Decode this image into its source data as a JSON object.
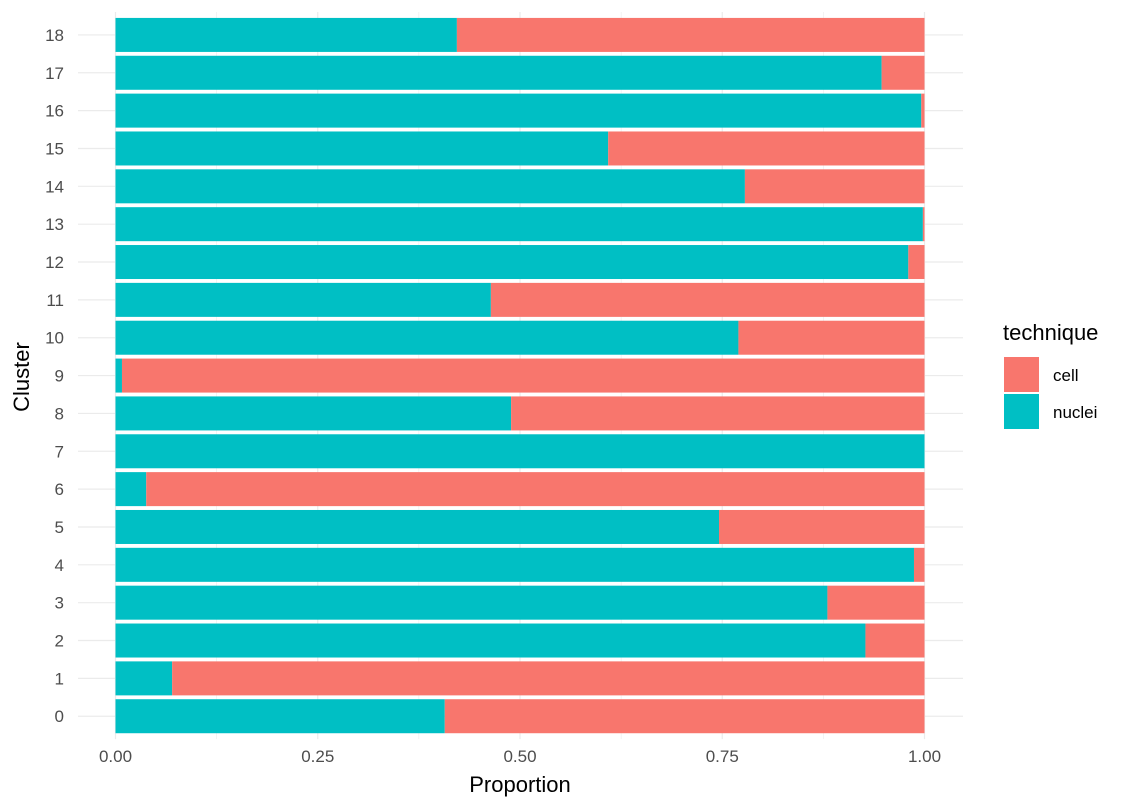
{
  "chart_data": {
    "type": "bar",
    "orientation": "horizontal",
    "stacked": true,
    "title": "",
    "xlabel": "Proportion",
    "ylabel": "Cluster",
    "xlim": [
      0,
      1
    ],
    "x_ticks": [
      "0.00",
      "0.25",
      "0.50",
      "0.75",
      "1.00"
    ],
    "grid": true,
    "legend_title": "technique",
    "legend_position": "right",
    "categories": [
      "0",
      "1",
      "2",
      "3",
      "4",
      "5",
      "6",
      "7",
      "8",
      "9",
      "10",
      "11",
      "12",
      "13",
      "14",
      "15",
      "16",
      "17",
      "18"
    ],
    "series": [
      {
        "name": "cell",
        "color": "#F8766D",
        "values": [
          0.593,
          0.93,
          0.073,
          0.12,
          0.013,
          0.254,
          0.962,
          0.0,
          0.511,
          0.992,
          0.23,
          0.536,
          0.02,
          0.002,
          0.222,
          0.391,
          0.004,
          0.053,
          0.578
        ]
      },
      {
        "name": "nuclei",
        "color": "#00BFC4",
        "values": [
          0.407,
          0.07,
          0.927,
          0.88,
          0.987,
          0.746,
          0.038,
          1.0,
          0.489,
          0.008,
          0.77,
          0.464,
          0.98,
          0.998,
          0.778,
          0.609,
          0.996,
          0.947,
          0.422
        ]
      }
    ]
  }
}
